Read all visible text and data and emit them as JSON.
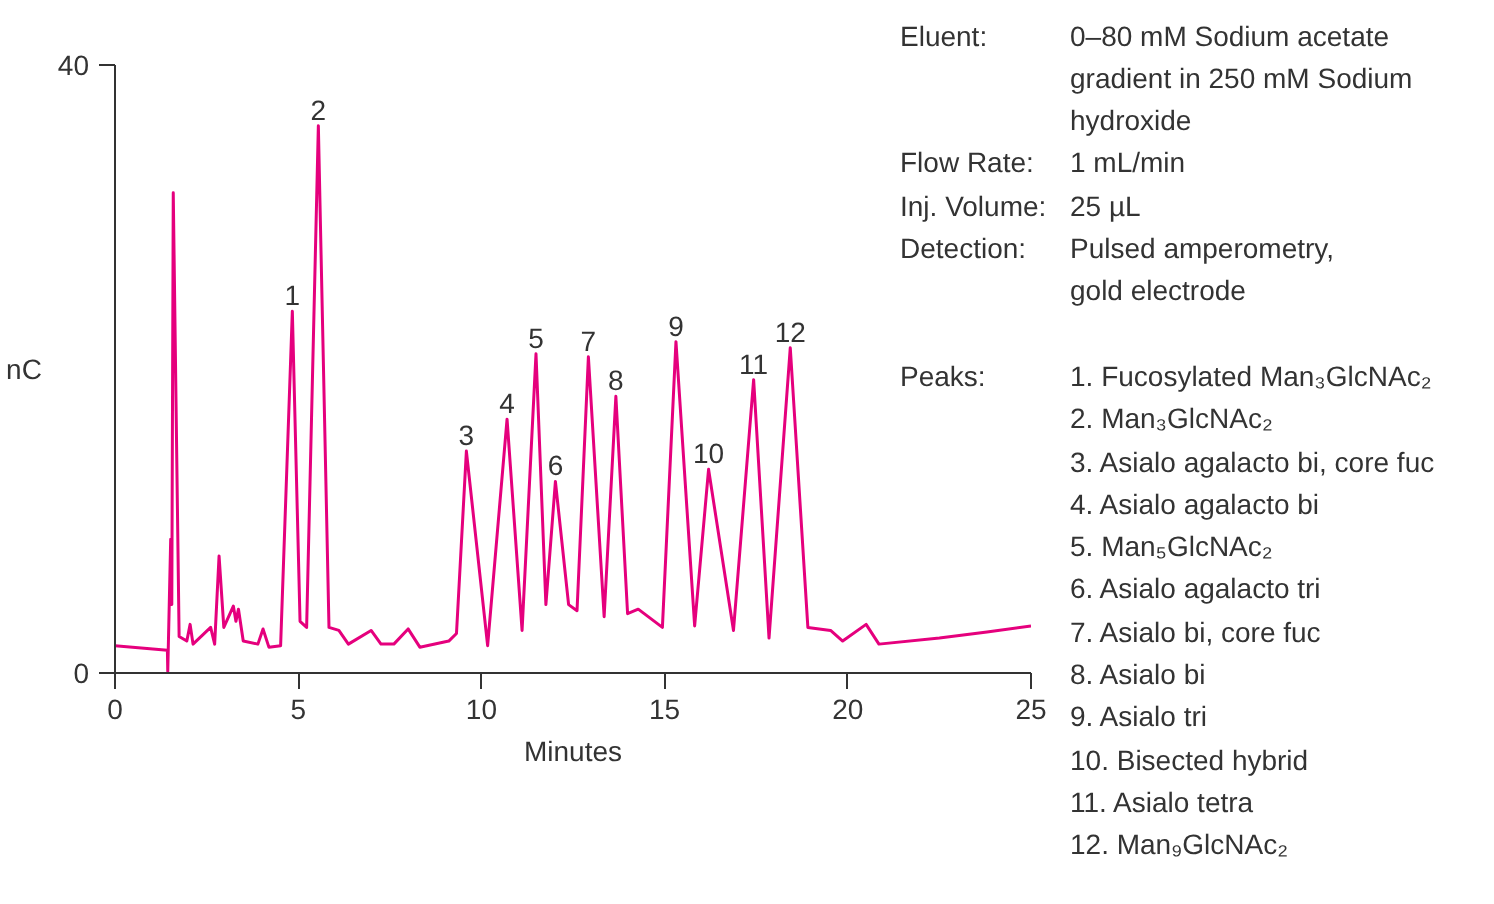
{
  "chart_data": {
    "type": "line",
    "xlabel": "Minutes",
    "ylabel": "nC",
    "xlim": [
      0,
      25
    ],
    "ylim": [
      0,
      40
    ],
    "xticks": [
      0,
      5,
      10,
      15,
      20,
      25
    ],
    "yticks": [
      0,
      40
    ],
    "grid": false,
    "line_style": "solid",
    "x": [
      0,
      1.43,
      1.44,
      1.52,
      1.55,
      1.59,
      1.75,
      1.96,
      2.05,
      2.13,
      2.61,
      2.72,
      2.84,
      2.97,
      3.23,
      3.3,
      3.37,
      3.5,
      3.9,
      4.04,
      4.2,
      4.52,
      4.84,
      5.05,
      5.23,
      5.55,
      5.84,
      6.11,
      6.37,
      6.99,
      7.26,
      7.61,
      8.0,
      8.32,
      9.11,
      9.32,
      9.59,
      10.17,
      10.7,
      11.11,
      11.49,
      11.76,
      12.02,
      12.38,
      12.61,
      12.92,
      13.35,
      13.67,
      13.99,
      14.28,
      14.94,
      15.31,
      15.82,
      16.2,
      16.88,
      17.43,
      17.85,
      18.43,
      18.91,
      19.53,
      19.86,
      20.5,
      20.85,
      22.5,
      23.8,
      25
    ],
    "series": [
      {
        "color": "#e5007d",
        "values": [
          1.8,
          1.5,
          0.1,
          8.8,
          4.5,
          31.6,
          2.4,
          2.1,
          3.2,
          1.9,
          3.0,
          1.9,
          7.7,
          3.0,
          4.4,
          3.4,
          4.2,
          2.1,
          1.9,
          2.9,
          1.7,
          1.8,
          23.8,
          3.4,
          3.0,
          36.0,
          3.0,
          2.8,
          1.9,
          2.8,
          1.9,
          1.9,
          2.9,
          1.7,
          2.1,
          2.6,
          14.6,
          1.8,
          16.7,
          2.8,
          21.0,
          4.5,
          12.6,
          4.5,
          4.1,
          20.8,
          3.7,
          18.2,
          3.9,
          4.2,
          3.0,
          21.8,
          3.1,
          13.4,
          2.8,
          19.3,
          2.3,
          21.4,
          3.0,
          2.8,
          2.1,
          3.2,
          1.9,
          2.3,
          2.7,
          3.1
        ]
      }
    ],
    "annotations": [
      {
        "text": "1",
        "x": 4.84,
        "y": 23.8
      },
      {
        "text": "2",
        "x": 5.55,
        "y": 36.0
      },
      {
        "text": "3",
        "x": 9.59,
        "y": 14.6
      },
      {
        "text": "4",
        "x": 10.7,
        "y": 16.7
      },
      {
        "text": "5",
        "x": 11.49,
        "y": 21.0
      },
      {
        "text": "6",
        "x": 12.02,
        "y": 12.6
      },
      {
        "text": "7",
        "x": 12.92,
        "y": 20.8
      },
      {
        "text": "8",
        "x": 13.67,
        "y": 18.2
      },
      {
        "text": "9",
        "x": 15.31,
        "y": 21.8
      },
      {
        "text": "10",
        "x": 16.2,
        "y": 13.4
      },
      {
        "text": "11",
        "x": 17.43,
        "y": 19.3
      },
      {
        "text": "12",
        "x": 18.43,
        "y": 21.4
      },
      "Eluent:\t0–80 mM Sodium acetate\ngradient in 250 mM Sodium\nhydroxide",
      "Flow Rate:\t1 mL/min",
      "Inj. Volume:\t25 µL",
      "Detection:\tPulsed amperometry,\ngold electrode",
      "Peaks:\t1. Fucosylated Man₃GlcNAc₂\n2. Man₃GlcNAc₂\n3. Asialo agalacto bi, core fuc\n4. Asialo agalacto bi\n5. Man₅GlcNAc₂\n6. Asialo agalacto tri\n7. Asialo bi, core fuc\n8. Asialo bi\n9. Asialo tri\n10. Bisected hybrid\n11. Asialo tetra\n12. Man₉GlcNAc₂"
    ]
  }
}
